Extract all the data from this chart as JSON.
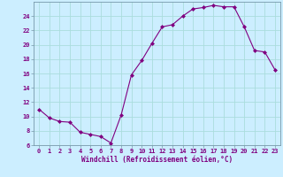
{
  "x": [
    0,
    1,
    2,
    3,
    4,
    5,
    6,
    7,
    8,
    9,
    10,
    11,
    12,
    13,
    14,
    15,
    16,
    17,
    18,
    19,
    20,
    21,
    22,
    23
  ],
  "y": [
    11,
    9.8,
    9.3,
    9.2,
    7.8,
    7.5,
    7.2,
    6.3,
    10.2,
    15.8,
    17.8,
    20.2,
    22.5,
    22.8,
    24.0,
    25.0,
    25.2,
    25.5,
    25.3,
    25.3,
    22.5,
    19.2,
    19.0,
    16.5
  ],
  "line_color": "#800080",
  "marker_color": "#800080",
  "bg_color": "#cceeff",
  "grid_color": "#aadddd",
  "xlabel": "Windchill (Refroidissement éolien,°C)",
  "ylim": [
    6,
    26
  ],
  "xlim": [
    -0.5,
    23.5
  ],
  "yticks": [
    6,
    8,
    10,
    12,
    14,
    16,
    18,
    20,
    22,
    24
  ],
  "xticks": [
    0,
    1,
    2,
    3,
    4,
    5,
    6,
    7,
    8,
    9,
    10,
    11,
    12,
    13,
    14,
    15,
    16,
    17,
    18,
    19,
    20,
    21,
    22,
    23
  ],
  "tick_label_color": "#800080",
  "xlabel_color": "#800080",
  "tick_fontsize": 5.0,
  "xlabel_fontsize": 5.5
}
